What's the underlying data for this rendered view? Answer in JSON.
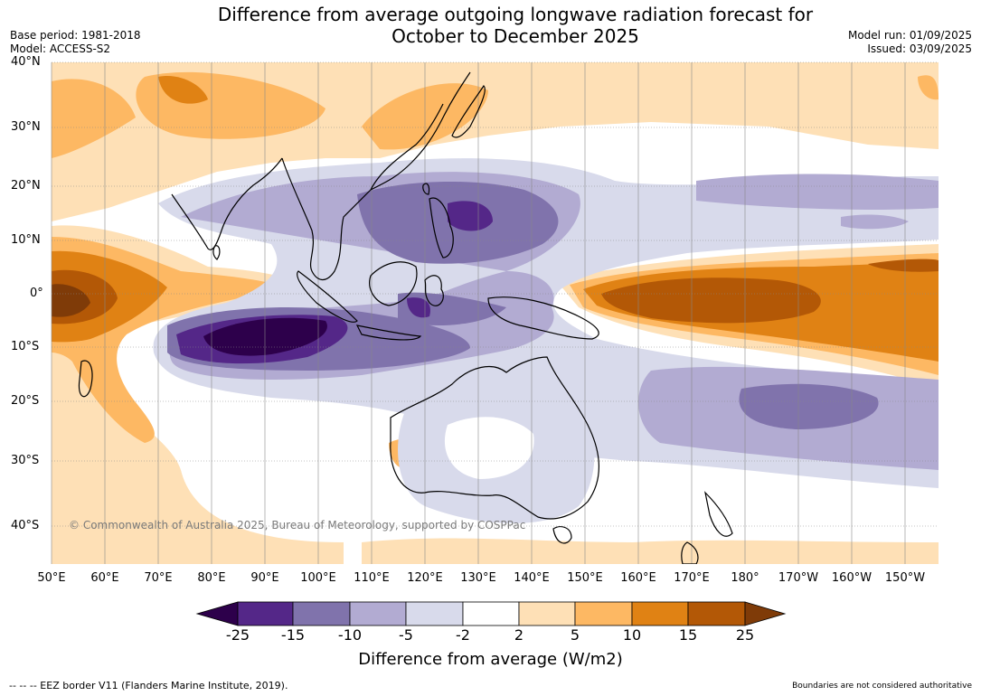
{
  "title_line1": "Difference from average outgoing longwave radiation forecast for",
  "title_line2": "October to December 2025",
  "base_period": "Base period: 1981-2018",
  "model": "Model: ACCESS-S2",
  "model_run": "Model run: 01/09/2025",
  "issued": "Issued: 03/09/2025",
  "copyright": "© Commonwealth of Australia 2025, Bureau of Meteorology, supported by COSPPac",
  "lat_labels": [
    "40°N",
    "30°N",
    "20°N",
    "10°N",
    "0°",
    "10°S",
    "20°S",
    "30°S",
    "40°S"
  ],
  "lon_labels": [
    "50°E",
    "60°E",
    "70°E",
    "80°E",
    "90°E",
    "100°E",
    "110°E",
    "120°E",
    "130°E",
    "140°E",
    "150°E",
    "160°E",
    "170°E",
    "180°",
    "170°W",
    "160°W",
    "150°W"
  ],
  "colorbar": {
    "labels": [
      "-25",
      "-15",
      "-10",
      "-5",
      "-2",
      "2",
      "5",
      "10",
      "15",
      "25"
    ],
    "colors": [
      "#2d004b",
      "#542788",
      "#8073ac",
      "#b2abd2",
      "#d8daeb",
      "#ffffff",
      "#fee0b6",
      "#fdb863",
      "#e08214",
      "#b35806",
      "#7f3b08"
    ],
    "title": "Difference from average (W/m2)"
  },
  "footer_left": "--  --  -- EEZ border V11 (Flanders Marine Institute, 2019).",
  "footer_right": "Boundaries are not considered authoritative"
}
